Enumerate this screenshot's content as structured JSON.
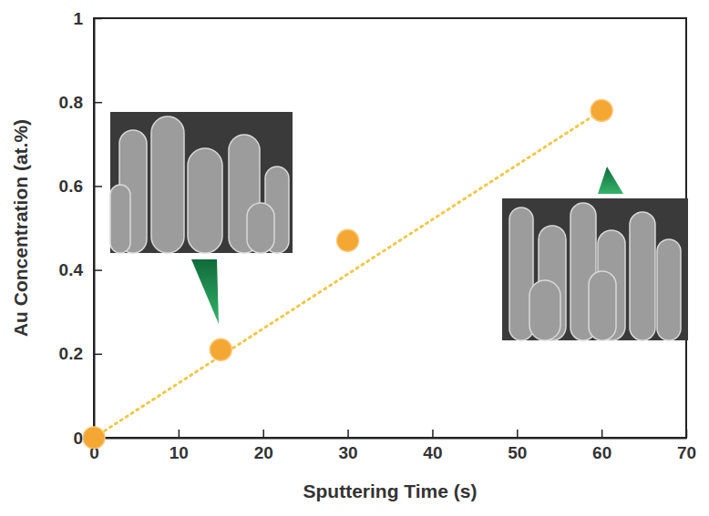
{
  "chart_data": {
    "type": "scatter",
    "x_label": "Sputtering Time (s)",
    "y_label": "Au Concentration (at.%)",
    "series": [
      {
        "color": "#f5a733",
        "marker": "circle",
        "x": [
          0,
          15,
          30,
          60
        ],
        "values": [
          0,
          0.21,
          0.47,
          0.78
        ]
      },
      {
        "type": "line",
        "line_style": "dotted",
        "color": "#f0c846",
        "x": [
          0,
          60
        ],
        "values": [
          0,
          0.78
        ]
      }
    ],
    "xlim": [
      0,
      70
    ],
    "xticks": [
      0,
      10,
      20,
      30,
      40,
      50,
      60,
      70
    ],
    "ylim": [
      0,
      1
    ],
    "yticks": [
      0,
      0.2,
      0.4,
      0.6,
      0.8,
      1
    ],
    "grid": false
  }
}
